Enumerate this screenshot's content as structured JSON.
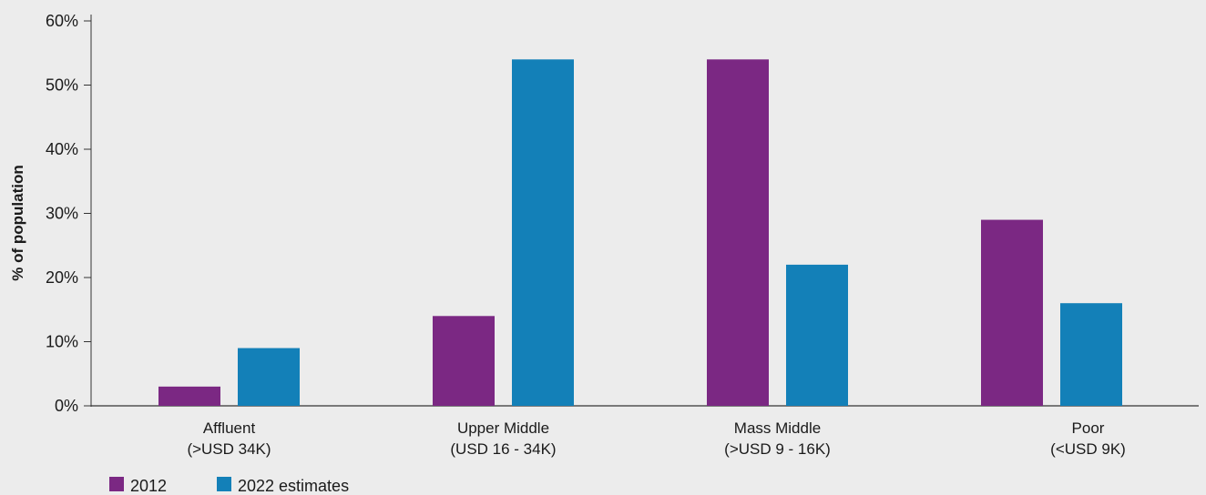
{
  "chart_data": {
    "type": "bar",
    "ylabel": "% of population",
    "ylim": [
      0,
      60
    ],
    "yticks": [
      0,
      10,
      20,
      30,
      40,
      50,
      60
    ],
    "ytick_labels": [
      "0%",
      "10%",
      "20%",
      "30%",
      "40%",
      "50%",
      "60%"
    ],
    "grid": false,
    "categories": [
      [
        "Affluent",
        "(>USD 34K)"
      ],
      [
        "Upper Middle",
        "(USD 16 - 34K)"
      ],
      [
        "Mass Middle",
        "(>USD 9 - 16K)"
      ],
      [
        "Poor",
        "(<USD 9K)"
      ]
    ],
    "series": [
      {
        "name": "2012",
        "color": "#7b2883",
        "values": [
          3,
          14,
          54,
          29
        ]
      },
      {
        "name": "2022 estimates",
        "color": "#1380b8",
        "values": [
          9,
          54,
          22,
          16
        ]
      }
    ],
    "legend_position": "bottom-left"
  }
}
